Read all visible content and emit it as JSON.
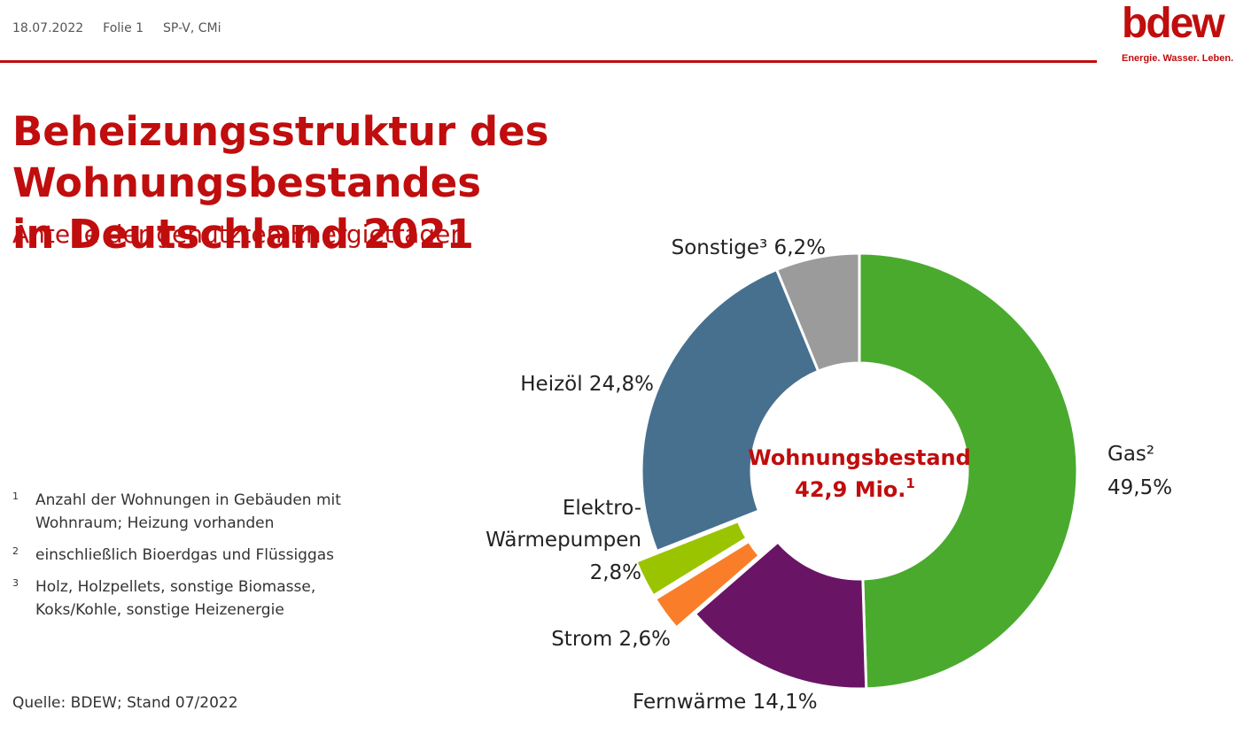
{
  "header": {
    "date": "18.07.2022",
    "slide": "Folie 1",
    "author": "SP-V, CMi"
  },
  "logo": {
    "word": "bdew",
    "tagline": "Energie. Wasser. Leben."
  },
  "title_line1": "Beheizungsstruktur des Wohnungsbestandes",
  "title_line2": "in Deutschland 2021",
  "subtitle": "Anteile der genutzten Energieträger",
  "footnotes": [
    {
      "num": "1",
      "text": "Anzahl der Wohnungen in Gebäuden mit Wohnraum; Heizung vorhanden"
    },
    {
      "num": "2",
      "text": "einschließlich Bioerdgas und Flüssiggas"
    },
    {
      "num": "3",
      "text": "Holz, Holzpellets, sonstige Biomasse, Koks/Kohle, sonstige Heizenergie"
    }
  ],
  "source": "Quelle:  BDEW; Stand 07/2022",
  "chart_data": {
    "type": "pie",
    "donut": true,
    "center_label_line1": "Wohnungsbestand",
    "center_label_line2": "42,9 Mio.",
    "center_label_sup": "1",
    "slices": [
      {
        "name": "Gas²",
        "value": 49.5,
        "value_label": "49,5%",
        "color": "#4aaa2e",
        "exploded": false
      },
      {
        "name": "Fernwärme",
        "value": 14.1,
        "value_label": "14,1%",
        "color": "#6a1466",
        "exploded": false
      },
      {
        "name": "Strom",
        "value": 2.6,
        "value_label": "2,6%",
        "color": "#fa7e29",
        "exploded": true
      },
      {
        "name": "Elektro-Wärmepumpen",
        "value": 2.8,
        "value_label": "2,8%",
        "color": "#9bc400",
        "exploded": true
      },
      {
        "name": "Heizöl",
        "value": 24.8,
        "value_label": "24,8%",
        "color": "#47708f",
        "exploded": false
      },
      {
        "name": "Sonstige³",
        "value": 6.2,
        "value_label": "6,2%",
        "color": "#9b9b9b",
        "exploded": false
      }
    ],
    "labels": {
      "gas_name": "Gas²",
      "gas_value": "49,5%",
      "fernwaerme": "Fernwärme 14,1%",
      "strom": "Strom 2,6%",
      "wp_line1": "Elektro-",
      "wp_line2": "Wärmepumpen",
      "wp_line3": "2,8%",
      "heizoel": "Heizöl 24,8%",
      "sonstige": "Sonstige³ 6,2%"
    }
  }
}
